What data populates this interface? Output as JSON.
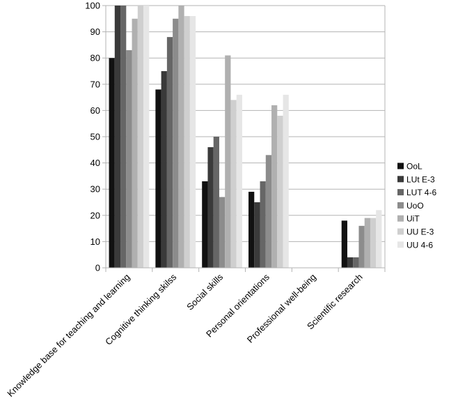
{
  "chart_data": {
    "type": "bar",
    "title": "",
    "xlabel": "",
    "ylabel": "",
    "ylim": [
      0,
      100
    ],
    "yticks": [
      0,
      10,
      20,
      30,
      40,
      50,
      60,
      70,
      80,
      90,
      100
    ],
    "grid": true,
    "legend_position": "right",
    "categories": [
      "Knowledge base for teaching and learning",
      "Cognitive thinking skilss",
      "Social skills",
      "Personal orientations",
      "Professional well-being",
      "Scientific research"
    ],
    "series": [
      {
        "name": "OoL",
        "color": "#111111",
        "values": [
          80,
          68,
          33,
          29,
          0,
          18
        ]
      },
      {
        "name": "LUt E-3",
        "color": "#3a3a3a",
        "values": [
          100,
          75,
          46,
          25,
          0,
          4
        ]
      },
      {
        "name": "LUT 4-6",
        "color": "#666666",
        "values": [
          100,
          88,
          50,
          33,
          0,
          4
        ]
      },
      {
        "name": "UoO",
        "color": "#8c8c8c",
        "values": [
          83,
          95,
          27,
          43,
          0,
          16
        ]
      },
      {
        "name": "UiT",
        "color": "#b0b0b0",
        "values": [
          95,
          100,
          81,
          62,
          0,
          19
        ]
      },
      {
        "name": "UU E-3",
        "color": "#cfcfcf",
        "values": [
          100,
          96,
          64,
          58,
          0,
          19
        ]
      },
      {
        "name": "UU 4-6",
        "color": "#e6e6e6",
        "values": [
          100,
          96,
          66,
          66,
          0,
          22
        ]
      }
    ]
  }
}
